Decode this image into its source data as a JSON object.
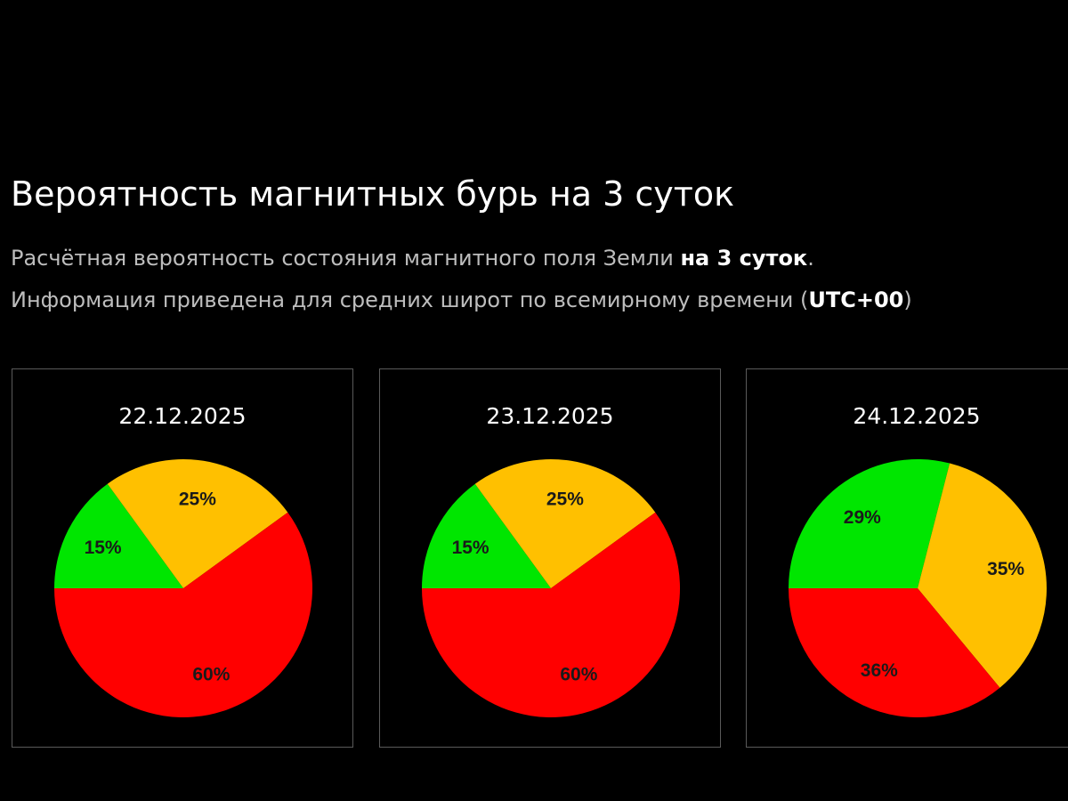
{
  "header": {
    "title": "Вероятность магнитных бурь на 3 суток",
    "line1_text": "Расчётная вероятность состояния магнитного поля Земли ",
    "line1_bold": "на 3 суток",
    "line1_end": ".",
    "line2_text": "Информация приведена для средних широт по всемирному времени (",
    "line2_bold": "UTC+00",
    "line2_end": ")"
  },
  "colors": {
    "green": "#00e600",
    "yellow": "#ffc000",
    "red": "#ff0000"
  },
  "chart_data": [
    {
      "type": "pie",
      "title": "22.12.2025",
      "start_angle_deg": 180,
      "direction": "clockwise",
      "slices": [
        {
          "label": "15%",
          "value": 15,
          "color": "#00e600"
        },
        {
          "label": "25%",
          "value": 25,
          "color": "#ffc000"
        },
        {
          "label": "60%",
          "value": 60,
          "color": "#ff0000"
        }
      ]
    },
    {
      "type": "pie",
      "title": "23.12.2025",
      "start_angle_deg": 180,
      "direction": "clockwise",
      "slices": [
        {
          "label": "15%",
          "value": 15,
          "color": "#00e600"
        },
        {
          "label": "25%",
          "value": 25,
          "color": "#ffc000"
        },
        {
          "label": "60%",
          "value": 60,
          "color": "#ff0000"
        }
      ]
    },
    {
      "type": "pie",
      "title": "24.12.2025",
      "start_angle_deg": 180,
      "direction": "clockwise",
      "slices": [
        {
          "label": "29%",
          "value": 29,
          "color": "#00e600"
        },
        {
          "label": "35%",
          "value": 35,
          "color": "#ffc000"
        },
        {
          "label": "36%",
          "value": 36,
          "color": "#ff0000"
        }
      ]
    }
  ]
}
